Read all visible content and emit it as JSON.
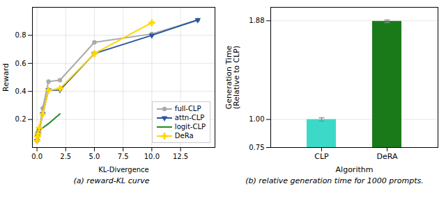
{
  "chart_data": [
    {
      "type": "line",
      "caption": "(a) reward-KL curve",
      "xlabel": "KL-Divergence",
      "ylabel": "Reward",
      "series": [
        {
          "name": "full-CLP",
          "color": "#aaaaaa",
          "marker": "circle",
          "x": [
            0.0,
            0.05,
            0.1,
            0.2,
            0.5,
            1.0,
            2.0,
            5.0,
            10.0,
            14.0
          ],
          "values": [
            0.05,
            0.08,
            0.1,
            0.13,
            0.28,
            0.47,
            0.48,
            0.75,
            0.81,
            0.91
          ]
        },
        {
          "name": "attn-CLP",
          "color": "#2855a0",
          "marker": "triangle-down",
          "x": [
            0.0,
            0.05,
            0.1,
            0.2,
            0.5,
            1.0,
            2.0,
            5.0,
            10.0,
            14.0
          ],
          "values": [
            0.05,
            0.08,
            0.1,
            0.13,
            0.24,
            0.41,
            0.41,
            0.67,
            0.8,
            0.91
          ]
        },
        {
          "name": "logit-CLP",
          "color": "#228B22",
          "x": [
            0.0,
            0.5,
            1.0,
            2.0
          ],
          "values": [
            0.12,
            0.14,
            0.17,
            0.24
          ]
        },
        {
          "name": "DeRa",
          "color": "#FFD700",
          "marker": "plus",
          "x": [
            0.0,
            0.05,
            0.1,
            0.2,
            0.5,
            1.0,
            2.0,
            5.0,
            10.0
          ],
          "values": [
            0.05,
            0.08,
            0.1,
            0.14,
            0.24,
            0.41,
            0.42,
            0.67,
            0.89
          ]
        }
      ],
      "xlim": [
        -0.4,
        15.5
      ],
      "xticks": [
        {
          "value": 0.0,
          "label": "0.0"
        },
        2.5,
        {
          "value": 5.0,
          "label": "5.0"
        },
        7.5,
        {
          "value": 10.0,
          "label": "10.0"
        },
        12.5
      ],
      "ylim": [
        0.0,
        1.0
      ],
      "yticks": [
        0.2,
        0.4,
        0.6,
        0.8
      ],
      "grid": true,
      "legend": "lower right"
    },
    {
      "type": "bar",
      "caption": "(b) relative generation time for 1000 prompts.",
      "xlabel": "Algorithm",
      "ylabel": "Generation Time\n(Relative to CLP)",
      "categories": [
        "CLP",
        "DeRA"
      ],
      "values": [
        1.0,
        1.875
      ],
      "errors": [
        0.015,
        0.012
      ],
      "colors": [
        "#3dd9c8",
        "#1a7a1a"
      ],
      "ylim": [
        0.75,
        2.0
      ],
      "yticks": [
        0.75,
        {
          "value": 1.0,
          "label": "1.00"
        },
        1.88
      ],
      "grid": "y"
    }
  ]
}
